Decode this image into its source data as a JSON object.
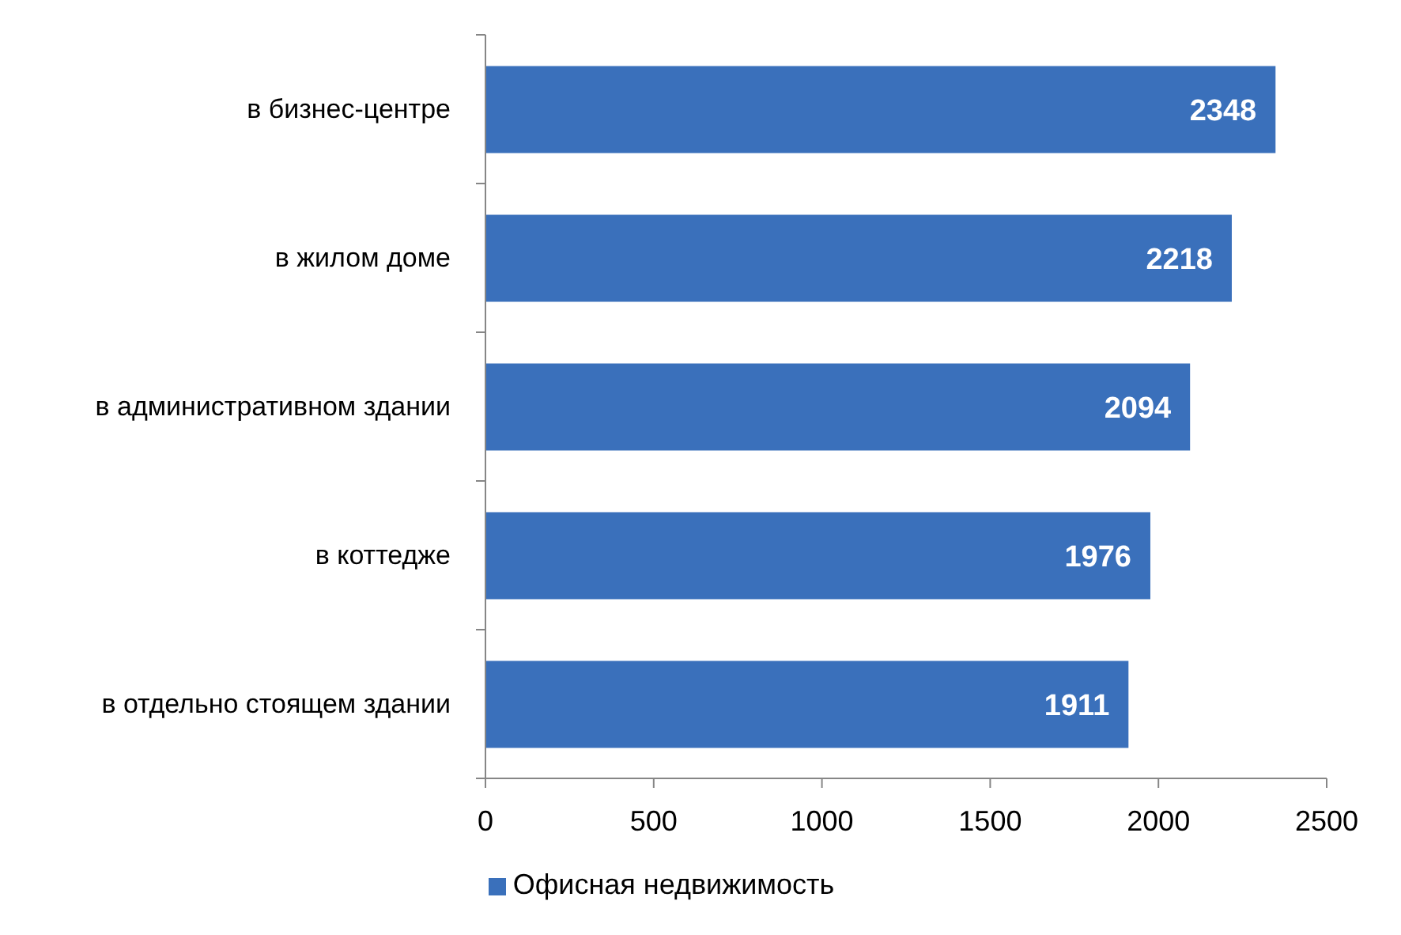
{
  "chart_data": {
    "type": "bar",
    "orientation": "horizontal",
    "categories": [
      "в бизнес-центре",
      "в жилом доме",
      "в административном здании",
      "в коттедже",
      "в отдельно стоящем здании"
    ],
    "series": [
      {
        "name": "Офисная недвижимость",
        "color": "#3a70bb",
        "values": [
          2348,
          2218,
          2094,
          1976,
          1911
        ]
      }
    ],
    "xlim": [
      0,
      2500
    ],
    "xticks": [
      0,
      500,
      1000,
      1500,
      2000,
      2500
    ],
    "legend": "bottom",
    "data_labels": true
  }
}
